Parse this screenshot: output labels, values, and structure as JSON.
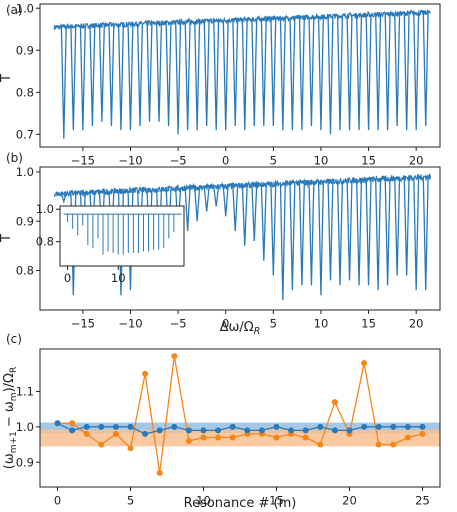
{
  "colors": {
    "trace": "#2a7ab9",
    "series_blue": "#2a7ab9",
    "series_orange": "#f58518",
    "band_blue": "#9cc1e2",
    "band_orange": "#f8bf90",
    "axis": "#222222"
  },
  "chart_data": [
    {
      "panel_label": "(a)",
      "type": "line",
      "title": "",
      "xlabel": "",
      "ylabel": "T",
      "xlim": [
        -19.5,
        22.5
      ],
      "ylim": [
        0.67,
        1.01
      ],
      "xticks": [
        -15,
        -10,
        -5,
        0,
        5,
        10,
        15,
        20
      ],
      "xtick_labels": [
        "−15",
        "−10",
        "−5",
        "0",
        "5",
        "10",
        "15",
        "20"
      ],
      "yticks": [
        0.7,
        0.8,
        0.9,
        1.0
      ],
      "ytick_labels": [
        "0.7",
        "0.8",
        "0.9",
        "1.0"
      ],
      "baseline": {
        "x_start": -18,
        "x_end": 21.5,
        "y_start": 0.955,
        "y_end": 0.99,
        "noise": 0.006
      },
      "dips_x": [
        -17,
        -16,
        -15,
        -14,
        -13,
        -12,
        -11,
        -10,
        -9,
        -8,
        -7,
        -6,
        -5,
        -4,
        -3,
        -2,
        -1,
        0,
        1,
        2,
        3,
        4,
        5,
        6,
        7,
        8,
        9,
        10,
        11,
        12,
        13,
        14,
        15,
        16,
        17,
        18,
        19,
        20,
        21
      ],
      "dips_min": [
        0.69,
        0.71,
        0.71,
        0.72,
        0.73,
        0.72,
        0.71,
        0.71,
        0.72,
        0.73,
        0.73,
        0.72,
        0.7,
        0.71,
        0.71,
        0.72,
        0.71,
        0.71,
        0.72,
        0.71,
        0.72,
        0.72,
        0.72,
        0.71,
        0.71,
        0.71,
        0.72,
        0.71,
        0.7,
        0.71,
        0.71,
        0.71,
        0.71,
        0.71,
        0.71,
        0.72,
        0.71,
        0.71,
        0.72
      ]
    },
    {
      "panel_label": "(b)",
      "type": "line",
      "title": "",
      "xlabel": "Δω/Ω_R",
      "ylabel": "T",
      "xlim": [
        -19.5,
        22.5
      ],
      "ylim": [
        0.72,
        1.01
      ],
      "xticks": [
        -15,
        -10,
        -5,
        0,
        5,
        10,
        15,
        20
      ],
      "xtick_labels": [
        "−15",
        "−10",
        "−5",
        "0",
        "5",
        "10",
        "15",
        "20"
      ],
      "yticks": [
        0.8,
        0.9,
        1.0
      ],
      "ytick_labels": [
        "0.8",
        "0.9",
        "1.0"
      ],
      "baseline": {
        "x_start": -18,
        "x_end": 21.5,
        "y_start": 0.955,
        "y_end": 0.99,
        "noise": 0.006
      },
      "dips_x": [
        -17,
        -16,
        -15,
        -14,
        -13,
        -12,
        -11,
        -10,
        -9,
        -8,
        -7,
        -6,
        -5,
        -4,
        -3,
        -2,
        -1,
        0,
        1,
        2,
        3,
        4,
        5,
        6,
        7,
        8,
        9,
        10,
        11,
        12,
        13,
        14,
        15,
        16,
        17,
        18,
        19,
        20,
        21
      ],
      "dips_min": [
        0.94,
        0.75,
        0.85,
        0.87,
        0.86,
        0.85,
        0.75,
        0.76,
        0.84,
        0.82,
        0.84,
        0.86,
        0.88,
        0.88,
        0.9,
        0.92,
        0.93,
        0.91,
        0.88,
        0.85,
        0.86,
        0.82,
        0.79,
        0.74,
        0.76,
        0.77,
        0.77,
        0.75,
        0.78,
        0.77,
        0.78,
        0.77,
        0.77,
        0.76,
        0.77,
        0.79,
        0.79,
        0.76,
        0.76
      ],
      "inset": {
        "xlim": [
          -1.5,
          23
        ],
        "ylim": [
          0.65,
          1.02
        ],
        "xticks": [
          0,
          10
        ],
        "xtick_labels": [
          "0",
          "10"
        ],
        "yticks": [
          0.8,
          1.0
        ],
        "ytick_labels": [
          "0.8",
          "1.0"
        ],
        "baseline_level": 0.97,
        "dips_x": [
          0,
          1,
          2,
          3,
          4,
          5,
          6,
          7,
          8,
          9,
          10,
          11,
          12,
          13,
          14,
          15,
          16,
          17,
          18,
          19,
          20,
          21
        ],
        "dips_min": [
          0.92,
          0.88,
          0.84,
          0.9,
          0.78,
          0.76,
          0.82,
          0.72,
          0.74,
          0.73,
          0.72,
          0.72,
          0.73,
          0.73,
          0.73,
          0.74,
          0.74,
          0.75,
          0.75,
          0.76,
          0.82,
          0.86
        ]
      }
    },
    {
      "panel_label": "(c)",
      "type": "line",
      "title": "",
      "xlabel": "Resonance # (m)",
      "ylabel": "(ω_{m+1} − ω_m)/Ω_R",
      "xlim": [
        -1.2,
        26.2
      ],
      "ylim": [
        0.83,
        1.22
      ],
      "xticks": [
        0,
        5,
        10,
        15,
        20,
        25
      ],
      "xtick_labels": [
        "0",
        "5",
        "10",
        "15",
        "20",
        "25"
      ],
      "yticks": [
        0.9,
        1.0,
        1.1
      ],
      "ytick_labels": [
        "0.9",
        "1.0",
        "1.1"
      ],
      "x": [
        0,
        1,
        2,
        3,
        4,
        5,
        6,
        7,
        8,
        9,
        10,
        11,
        12,
        13,
        14,
        15,
        16,
        17,
        18,
        19,
        20,
        21,
        22,
        23,
        24,
        25
      ],
      "bands": [
        {
          "low": 0.982,
          "high": 1.012
        },
        {
          "low": 0.945,
          "high": 0.992
        }
      ],
      "series": [
        {
          "values": [
            1.01,
            0.99,
            1.0,
            1.0,
            1.0,
            1.0,
            0.98,
            0.99,
            1.0,
            0.99,
            0.99,
            0.99,
            1.0,
            0.99,
            0.99,
            1.0,
            0.99,
            0.99,
            1.0,
            0.99,
            0.99,
            1.0,
            1.0,
            1.0,
            1.0,
            1.0
          ]
        },
        {
          "values": [
            1.01,
            1.01,
            0.98,
            0.95,
            0.98,
            0.94,
            1.15,
            0.87,
            1.2,
            0.96,
            0.97,
            0.97,
            0.97,
            0.98,
            0.98,
            0.97,
            0.98,
            0.97,
            0.95,
            1.07,
            0.98,
            1.18,
            0.95,
            0.95,
            0.97,
            0.98
          ]
        }
      ]
    }
  ]
}
